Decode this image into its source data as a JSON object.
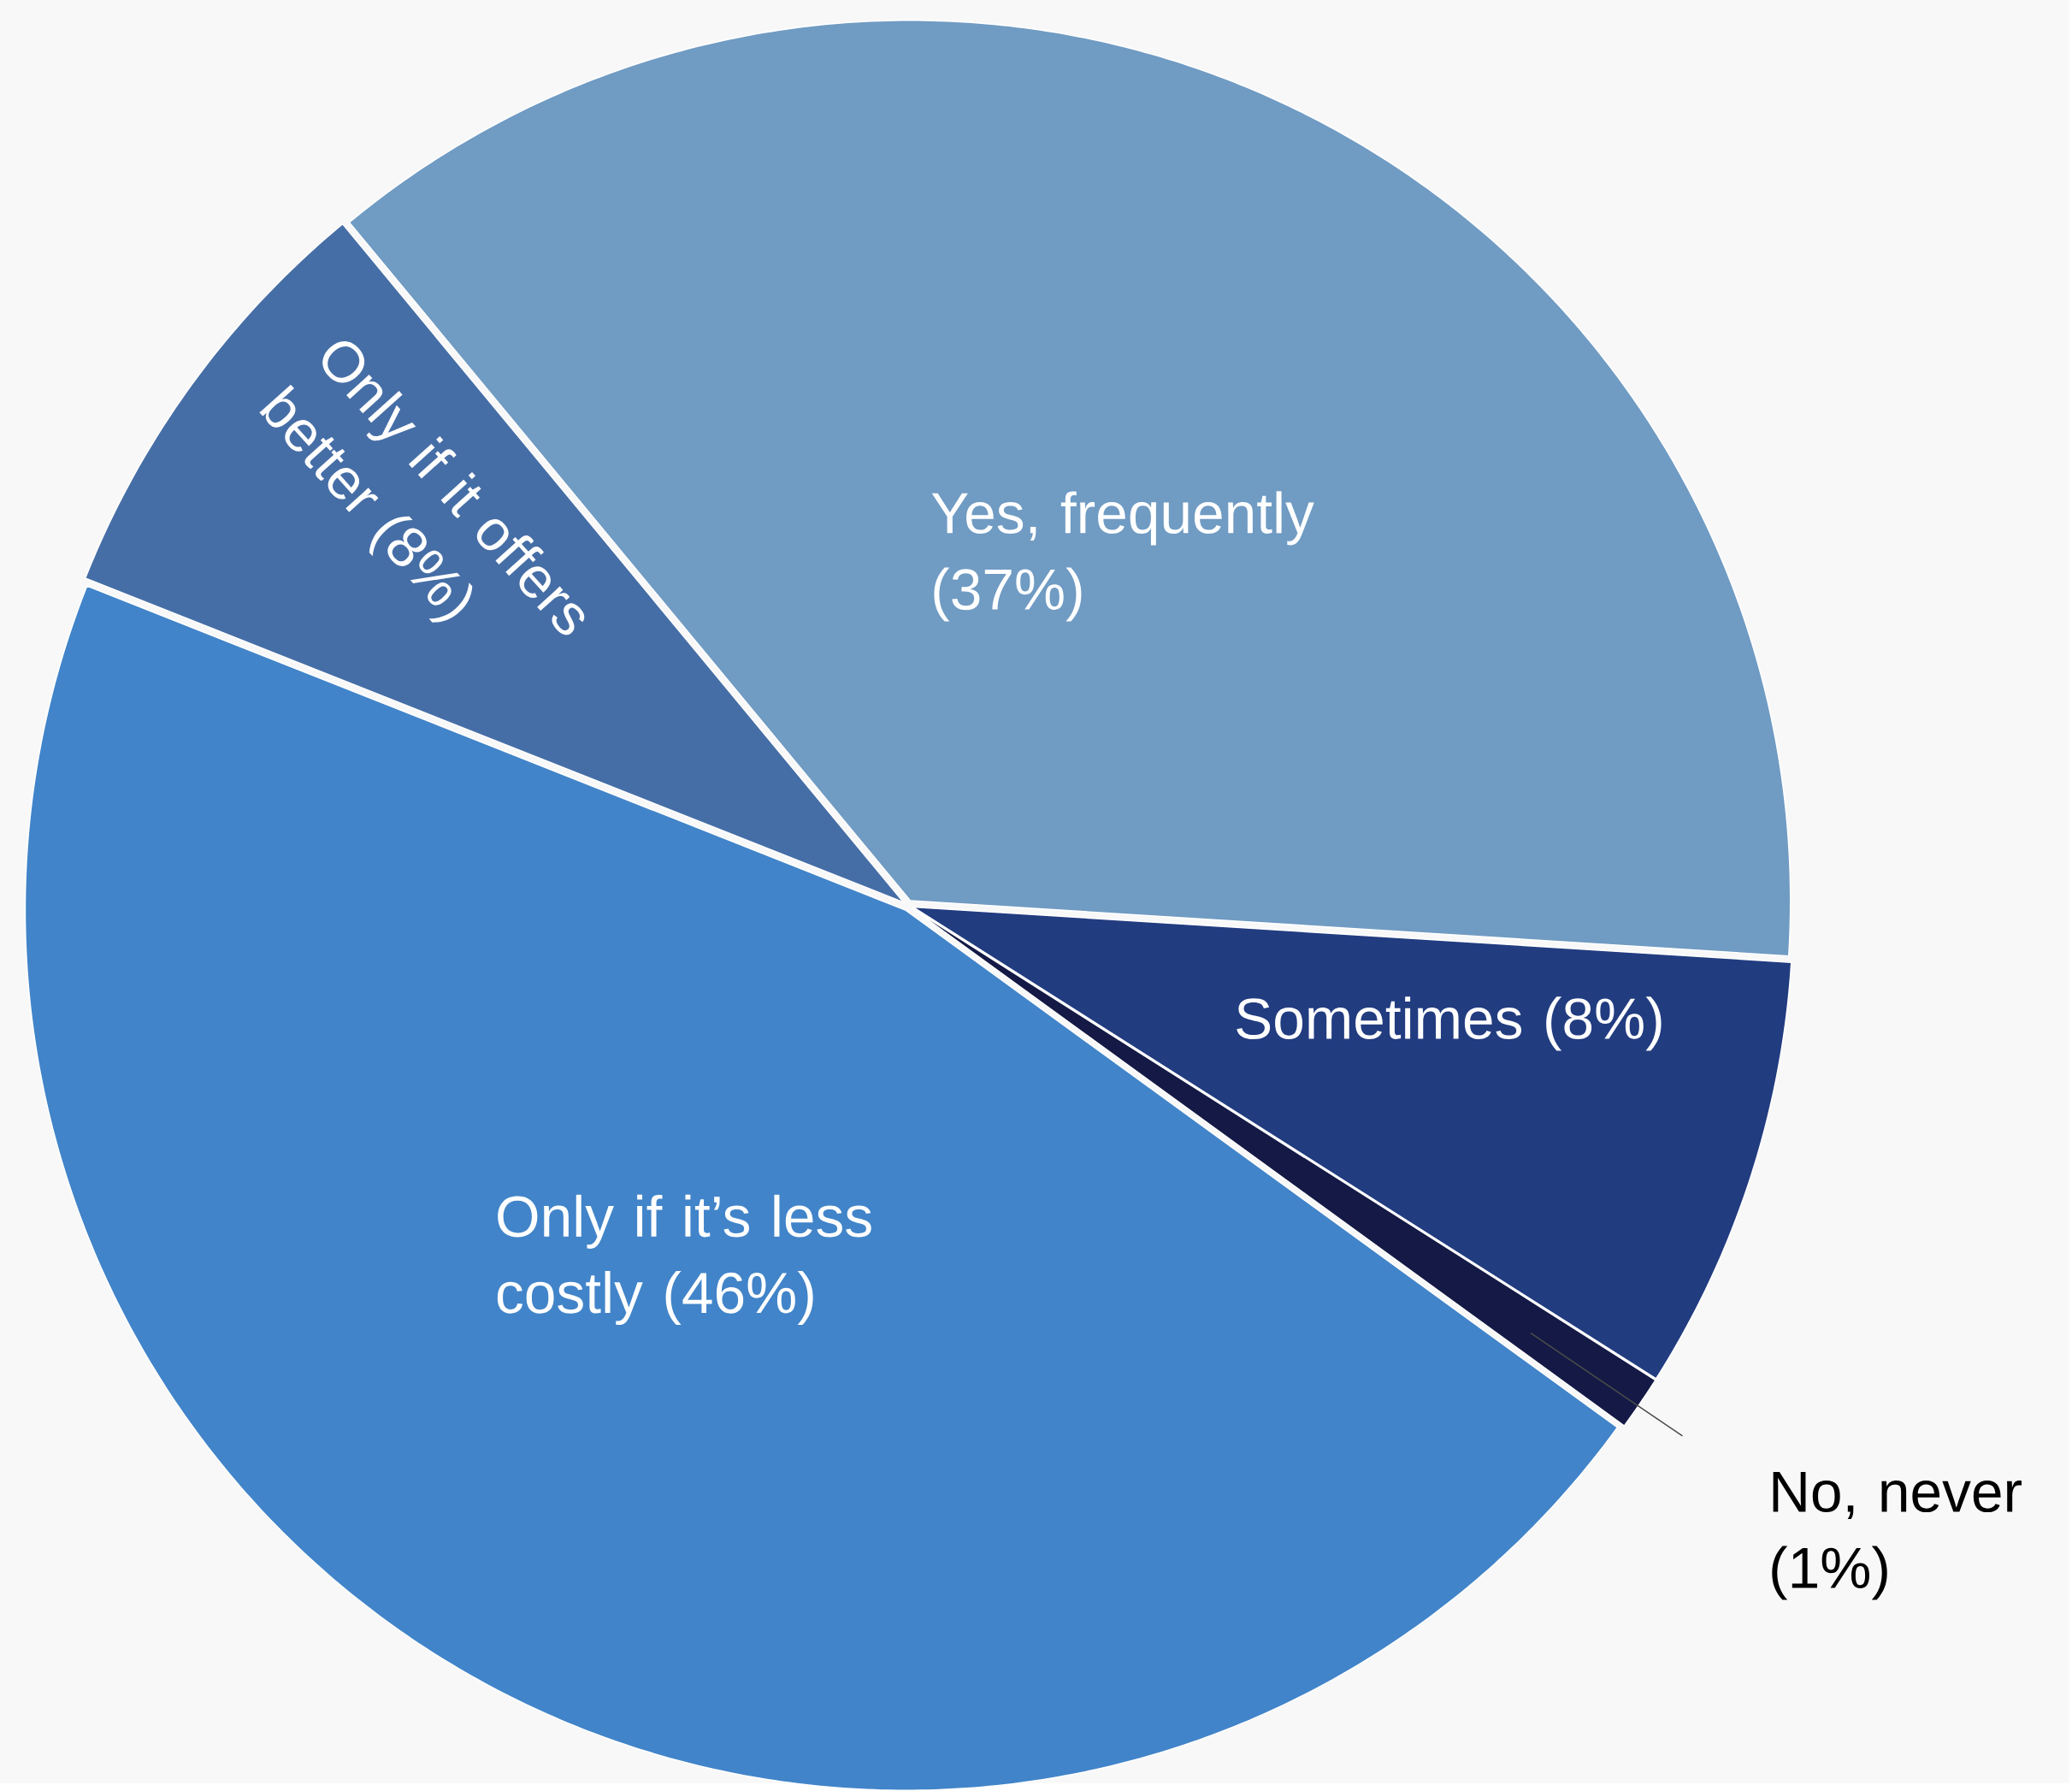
{
  "chart_data": {
    "type": "pie",
    "categories": [
      "Yes, frequently (37%)",
      "Sometimes (8%)",
      "No, never (1%)",
      "Only if it’s less costly  (46%)",
      "Only if it offers better (8%)"
    ],
    "values": [
      37,
      8,
      1,
      46,
      8
    ],
    "colors": [
      "#709bc3",
      "#223c80",
      "#141a45",
      "#4184c9",
      "#466ea6"
    ]
  }
}
